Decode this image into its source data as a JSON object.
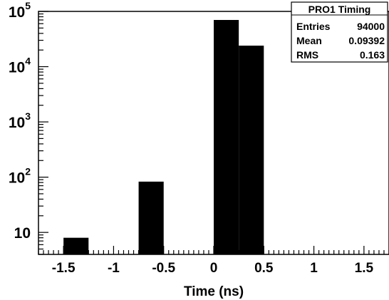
{
  "chart_data": {
    "type": "bar",
    "title": "",
    "xlabel": "Time (ns)",
    "ylabel": "",
    "xlim": [
      -1.75,
      1.75
    ],
    "ylim": [
      4,
      100000
    ],
    "yscale": "log",
    "grid": false,
    "bin_edges": [
      -1.75,
      -1.5,
      -1.25,
      -1.0,
      -0.75,
      -0.5,
      -0.25,
      0.0,
      0.25,
      0.5,
      0.75,
      1.0,
      1.25,
      1.5,
      1.75
    ],
    "values": [
      0,
      8,
      0,
      0,
      83,
      0,
      0,
      70000,
      24000,
      0,
      0,
      0,
      0,
      0
    ],
    "x_ticks": [
      {
        "value": -1.5,
        "label": "-1.5"
      },
      {
        "value": -1.0,
        "label": "-1"
      },
      {
        "value": -0.5,
        "label": "-0.5"
      },
      {
        "value": 0.0,
        "label": "0"
      },
      {
        "value": 0.5,
        "label": "0.5"
      },
      {
        "value": 1.0,
        "label": "1"
      },
      {
        "value": 1.5,
        "label": "1.5"
      }
    ],
    "y_ticks": [
      {
        "value": 10,
        "base": "10",
        "exp": ""
      },
      {
        "value": 100,
        "base": "10",
        "exp": "2"
      },
      {
        "value": 1000,
        "base": "10",
        "exp": "3"
      },
      {
        "value": 10000,
        "base": "10",
        "exp": "4"
      },
      {
        "value": 100000,
        "base": "10",
        "exp": "5"
      }
    ],
    "stats_box": {
      "title": "PRO1 Timing",
      "rows": [
        {
          "label": "Entries",
          "value": "94000"
        },
        {
          "label": "Mean",
          "value": "0.09392"
        },
        {
          "label": "RMS",
          "value": "0.163"
        }
      ]
    },
    "bar_color": "#000000"
  }
}
